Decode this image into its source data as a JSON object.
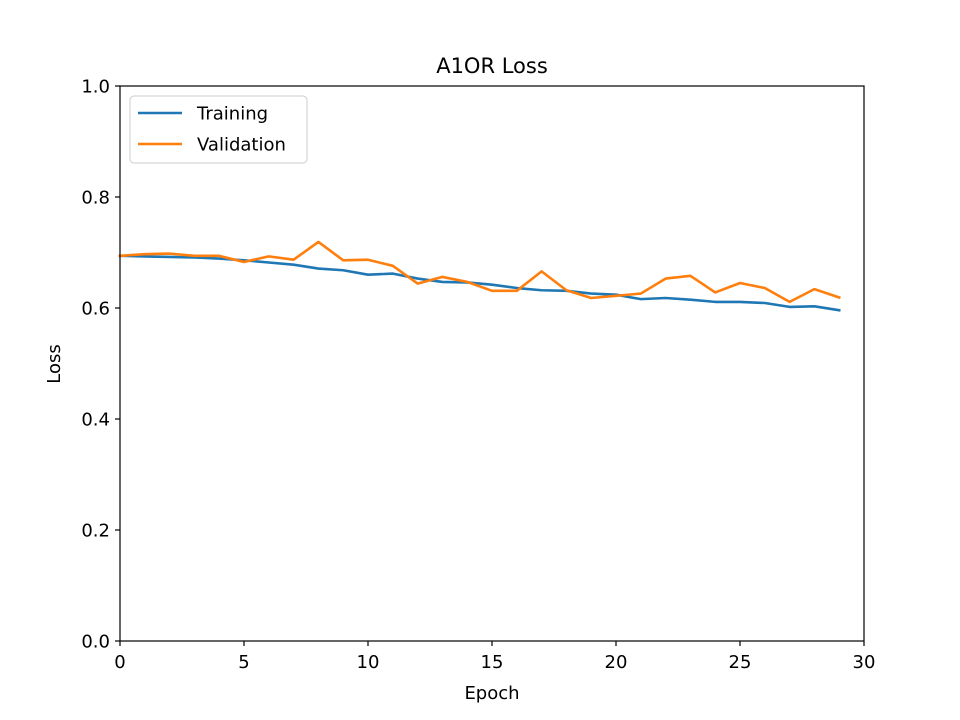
{
  "chart_data": {
    "type": "line",
    "title": "A1OR Loss",
    "xlabel": "Epoch",
    "ylabel": "Loss",
    "xlim": [
      0,
      30
    ],
    "ylim": [
      0,
      1
    ],
    "xticks": [
      0,
      5,
      10,
      15,
      20,
      25,
      30
    ],
    "yticks": [
      0.0,
      0.2,
      0.4,
      0.6,
      0.8,
      1.0
    ],
    "ytick_labels": [
      "0.0",
      "0.2",
      "0.4",
      "0.6",
      "0.8",
      "1.0"
    ],
    "grid": false,
    "legend_position": "top-left",
    "x": [
      0,
      1,
      2,
      3,
      4,
      5,
      6,
      7,
      8,
      9,
      10,
      11,
      12,
      13,
      14,
      15,
      16,
      17,
      18,
      19,
      20,
      21,
      22,
      23,
      24,
      25,
      26,
      27,
      28,
      29
    ],
    "series": [
      {
        "name": "Training",
        "color": "#1f77b4",
        "values": [
          0.694,
          0.693,
          0.692,
          0.691,
          0.689,
          0.686,
          0.682,
          0.678,
          0.671,
          0.668,
          0.66,
          0.662,
          0.653,
          0.647,
          0.646,
          0.642,
          0.636,
          0.632,
          0.631,
          0.626,
          0.624,
          0.616,
          0.618,
          0.615,
          0.611,
          0.611,
          0.609,
          0.602,
          0.603,
          0.596
        ]
      },
      {
        "name": "Validation",
        "color": "#ff7f0e",
        "values": [
          0.694,
          0.697,
          0.698,
          0.694,
          0.694,
          0.683,
          0.693,
          0.687,
          0.719,
          0.686,
          0.687,
          0.676,
          0.644,
          0.656,
          0.647,
          0.631,
          0.631,
          0.666,
          0.632,
          0.618,
          0.622,
          0.626,
          0.653,
          0.658,
          0.628,
          0.645,
          0.636,
          0.611,
          0.634,
          0.619
        ]
      }
    ]
  }
}
